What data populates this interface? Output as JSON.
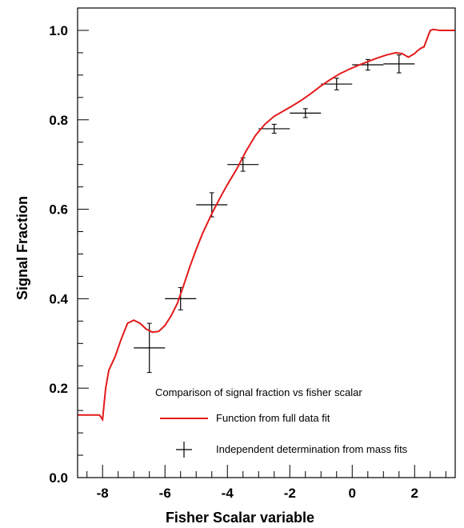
{
  "chart_data": {
    "type": "line",
    "title": "",
    "xlabel": "Fisher Scalar variable",
    "ylabel": "Signal Fraction",
    "xlim": [
      -8.8,
      3.3
    ],
    "ylim": [
      0.0,
      1.05
    ],
    "grid": false,
    "legend_position": "bottom-right",
    "legend_title": "Comparison of signal fraction vs fisher scalar",
    "x_ticks": [
      -8,
      -6,
      -4,
      -2,
      0,
      2
    ],
    "y_ticks": [
      0.0,
      0.2,
      0.4,
      0.6,
      0.8,
      1.0
    ],
    "x_tick_labels": [
      "-8",
      "-6",
      "-4",
      "-2",
      "0",
      "2"
    ],
    "y_tick_labels": [
      "0.0",
      "0.2",
      "0.4",
      "0.6",
      "0.8",
      "1.0"
    ],
    "series": [
      {
        "name": "Function from full data fit",
        "kind": "line",
        "color": "#e31a1c",
        "x": [
          -8.8,
          -8.1,
          -8.0,
          -7.9,
          -7.8,
          -7.6,
          -7.4,
          -7.2,
          -7.0,
          -6.8,
          -6.6,
          -6.4,
          -6.2,
          -6.0,
          -5.8,
          -5.6,
          -5.4,
          -5.2,
          -5.0,
          -4.8,
          -4.5,
          -4.2,
          -4.0,
          -3.7,
          -3.4,
          -3.1,
          -2.8,
          -2.5,
          -2.2,
          -1.9,
          -1.6,
          -1.3,
          -1.0,
          -0.7,
          -0.4,
          -0.1,
          0.2,
          0.5,
          0.8,
          1.1,
          1.4,
          1.6,
          1.8,
          2.0,
          2.1,
          2.2,
          2.3,
          2.5,
          2.6,
          2.8,
          3.0,
          3.3
        ],
        "y": [
          0.14,
          0.14,
          0.13,
          0.2,
          0.24,
          0.27,
          0.31,
          0.345,
          0.352,
          0.345,
          0.332,
          0.325,
          0.327,
          0.34,
          0.362,
          0.39,
          0.43,
          0.472,
          0.51,
          0.545,
          0.59,
          0.63,
          0.655,
          0.69,
          0.73,
          0.765,
          0.79,
          0.808,
          0.82,
          0.832,
          0.845,
          0.86,
          0.876,
          0.89,
          0.903,
          0.913,
          0.922,
          0.93,
          0.938,
          0.945,
          0.95,
          0.948,
          0.94,
          0.948,
          0.955,
          0.96,
          0.963,
          1.0,
          1.002,
          1.0,
          1.0,
          1.0
        ]
      },
      {
        "name": "Independent determination from mass fits",
        "kind": "errorbar",
        "color": "#000000",
        "points": [
          {
            "x": -6.5,
            "y": 0.29,
            "xerr": 0.5,
            "yerr": 0.055
          },
          {
            "x": -5.5,
            "y": 0.4,
            "xerr": 0.5,
            "yerr": 0.025
          },
          {
            "x": -4.5,
            "y": 0.61,
            "xerr": 0.5,
            "yerr": 0.027
          },
          {
            "x": -3.5,
            "y": 0.7,
            "xerr": 0.5,
            "yerr": 0.015
          },
          {
            "x": -2.5,
            "y": 0.78,
            "xerr": 0.5,
            "yerr": 0.01
          },
          {
            "x": -1.5,
            "y": 0.815,
            "xerr": 0.5,
            "yerr": 0.01
          },
          {
            "x": -0.5,
            "y": 0.88,
            "xerr": 0.5,
            "yerr": 0.013
          },
          {
            "x": 0.5,
            "y": 0.923,
            "xerr": 0.5,
            "yerr": 0.012
          },
          {
            "x": 1.5,
            "y": 0.925,
            "xerr": 0.5,
            "yerr": 0.02
          }
        ]
      }
    ]
  }
}
